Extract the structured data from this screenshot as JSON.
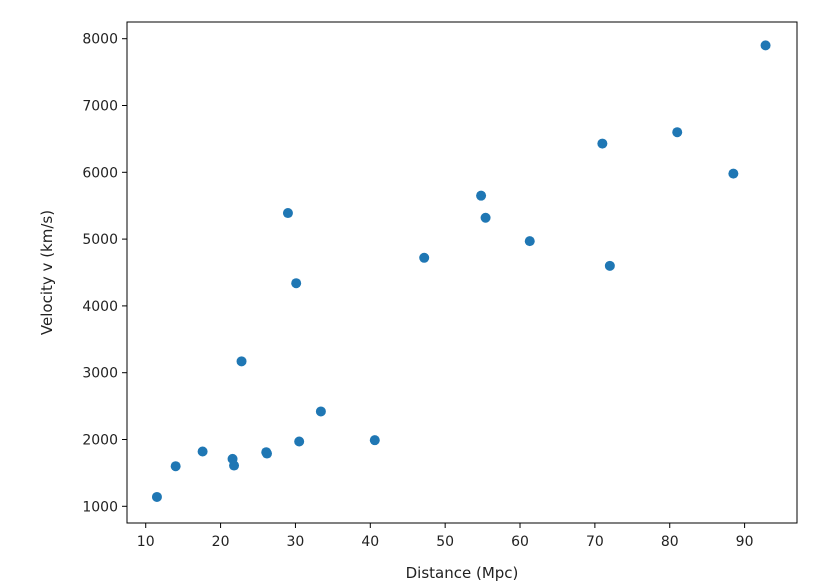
{
  "chart_data": {
    "type": "scatter",
    "xlabel": "Distance (Mpc)",
    "ylabel": "Velocity v (km/s)",
    "xlim": [
      7.5,
      97
    ],
    "ylim": [
      750,
      8250
    ],
    "xticks": [
      10,
      20,
      30,
      40,
      50,
      60,
      70,
      80,
      90
    ],
    "yticks": [
      1000,
      2000,
      3000,
      4000,
      5000,
      6000,
      7000,
      8000
    ],
    "grid": false,
    "marker_color": "#1f77b4",
    "points": [
      {
        "x": 11.5,
        "y": 1140
      },
      {
        "x": 14.0,
        "y": 1600
      },
      {
        "x": 17.6,
        "y": 1820
      },
      {
        "x": 21.6,
        "y": 1710
      },
      {
        "x": 21.8,
        "y": 1610
      },
      {
        "x": 22.8,
        "y": 3170
      },
      {
        "x": 26.1,
        "y": 1810
      },
      {
        "x": 26.2,
        "y": 1790
      },
      {
        "x": 29.0,
        "y": 5390
      },
      {
        "x": 30.1,
        "y": 4340
      },
      {
        "x": 30.5,
        "y": 1970
      },
      {
        "x": 33.4,
        "y": 2420
      },
      {
        "x": 40.6,
        "y": 1990
      },
      {
        "x": 47.2,
        "y": 4720
      },
      {
        "x": 54.8,
        "y": 5650
      },
      {
        "x": 55.4,
        "y": 5320
      },
      {
        "x": 61.3,
        "y": 4970
      },
      {
        "x": 71.0,
        "y": 6430
      },
      {
        "x": 72.0,
        "y": 4600
      },
      {
        "x": 81.0,
        "y": 6600
      },
      {
        "x": 88.5,
        "y": 5980
      },
      {
        "x": 92.8,
        "y": 7900
      }
    ]
  }
}
